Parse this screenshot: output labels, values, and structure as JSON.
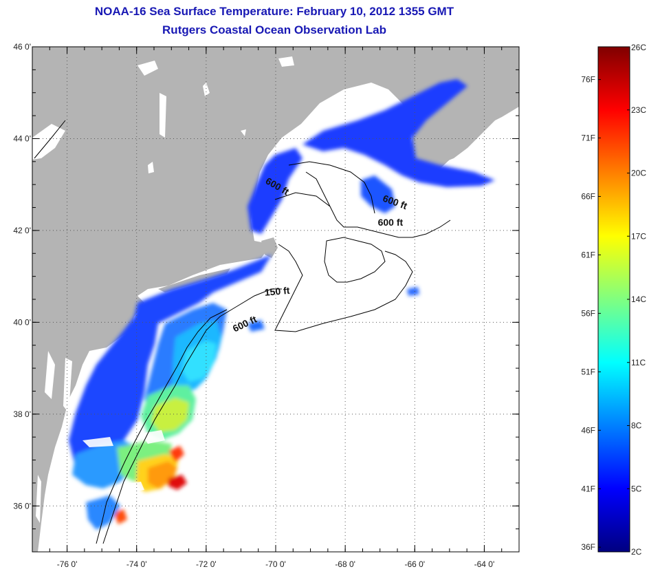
{
  "titles": {
    "line1": "NOAA-16 Sea Surface Temperature:  February 10, 2012 1355 GMT",
    "line2": "Rutgers Coastal Ocean Observation Lab"
  },
  "map": {
    "lon_range": [
      -77,
      -63
    ],
    "lat_range": [
      35,
      46
    ],
    "lon_ticks": [
      {
        "lon": -76,
        "label": "-76 0'"
      },
      {
        "lon": -74,
        "label": "-74 0'"
      },
      {
        "lon": -72,
        "label": "-72 0'"
      },
      {
        "lon": -70,
        "label": "-70 0'"
      },
      {
        "lon": -68,
        "label": "-68 0'"
      },
      {
        "lon": -66,
        "label": "-66 0'"
      },
      {
        "lon": -64,
        "label": "-64 0'"
      }
    ],
    "lat_ticks": [
      {
        "lat": 46,
        "label": "46 0'"
      },
      {
        "lat": 44,
        "label": "44 0'"
      },
      {
        "lat": 42,
        "label": "42 0'"
      },
      {
        "lat": 40,
        "label": "40 0'"
      },
      {
        "lat": 38,
        "label": "38 0'"
      },
      {
        "lat": 36,
        "label": "36 0'"
      }
    ],
    "grid": "dotted",
    "land_color": "#b4b4b4",
    "contour_labels": [
      {
        "text": "600 ft",
        "lon": -70.0,
        "lat": 42.9,
        "rotate": 30
      },
      {
        "text": "600 ft",
        "lon": -66.6,
        "lat": 42.55,
        "rotate": 20
      },
      {
        "text": "600 ft",
        "lon": -66.7,
        "lat": 42.1,
        "rotate": 0
      },
      {
        "text": "150 ft",
        "lon": -69.95,
        "lat": 40.6,
        "rotate": -5
      },
      {
        "text": "600 ft",
        "lon": -70.85,
        "lat": 39.9,
        "rotate": -25
      }
    ]
  },
  "colorbar": {
    "min_c": 2,
    "max_c": 26,
    "celsius_labels": [
      {
        "c": 26,
        "label": "26C"
      },
      {
        "c": 23,
        "label": "23C"
      },
      {
        "c": 20,
        "label": "20C"
      },
      {
        "c": 17,
        "label": "17C"
      },
      {
        "c": 14,
        "label": "14C"
      },
      {
        "c": 11,
        "label": "11C"
      },
      {
        "c": 8,
        "label": "8C"
      },
      {
        "c": 5,
        "label": "5C"
      },
      {
        "c": 2,
        "label": "2C"
      }
    ],
    "fahrenheit_labels": [
      {
        "f": 76,
        "label": "76F"
      },
      {
        "f": 71,
        "label": "71F"
      },
      {
        "f": 66,
        "label": "66F"
      },
      {
        "f": 61,
        "label": "61F"
      },
      {
        "f": 56,
        "label": "56F"
      },
      {
        "f": 51,
        "label": "51F"
      },
      {
        "f": 46,
        "label": "46F"
      },
      {
        "f": 41,
        "label": "41F"
      },
      {
        "f": 36,
        "label": "36F"
      }
    ],
    "stops": [
      "#000080",
      "#0000ff",
      "#0080ff",
      "#00ffff",
      "#80ff80",
      "#ffff00",
      "#ff8000",
      "#ff0000",
      "#800000"
    ]
  }
}
